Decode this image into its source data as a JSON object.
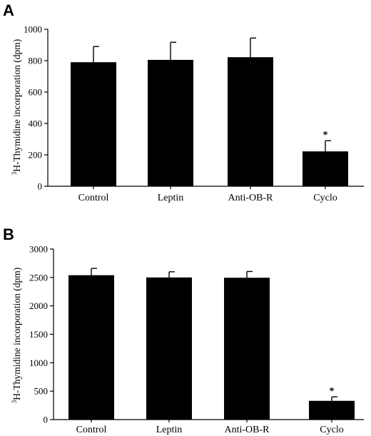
{
  "chart_data": [
    {
      "panel_label": "A",
      "type": "bar",
      "categories": [
        "Control",
        "Leptin",
        "Anti-OB-R",
        "Cyclo"
      ],
      "values": [
        790,
        805,
        822,
        222
      ],
      "errors": [
        100,
        112,
        122,
        68
      ],
      "annotations": [
        "",
        "",
        "",
        "*"
      ],
      "ylabel": "3H-Thymidine incorporation (dpm)",
      "ylabel_sup": "3",
      "ylabel_main": "H-Thymidine incorporation (dpm)",
      "ylim": [
        0,
        1000
      ],
      "yticks": [
        0,
        200,
        400,
        600,
        800,
        1000
      ],
      "bar_color": "#000000",
      "grid": false
    },
    {
      "panel_label": "B",
      "type": "bar",
      "categories": [
        "Control",
        "Leptin",
        "Anti-OB-R",
        "Cyclo"
      ],
      "values": [
        2540,
        2500,
        2495,
        330
      ],
      "errors": [
        120,
        100,
        110,
        70
      ],
      "annotations": [
        "",
        "",
        "",
        "*"
      ],
      "ylabel": "3H-Thymidine incorporation (dpm)",
      "ylabel_sup": "3",
      "ylabel_main": "H-Thymidine incorporation (dpm)",
      "ylim": [
        0,
        3000
      ],
      "yticks": [
        0,
        500,
        1000,
        1500,
        2000,
        2500,
        3000
      ],
      "bar_color": "#000000",
      "grid": false
    }
  ]
}
